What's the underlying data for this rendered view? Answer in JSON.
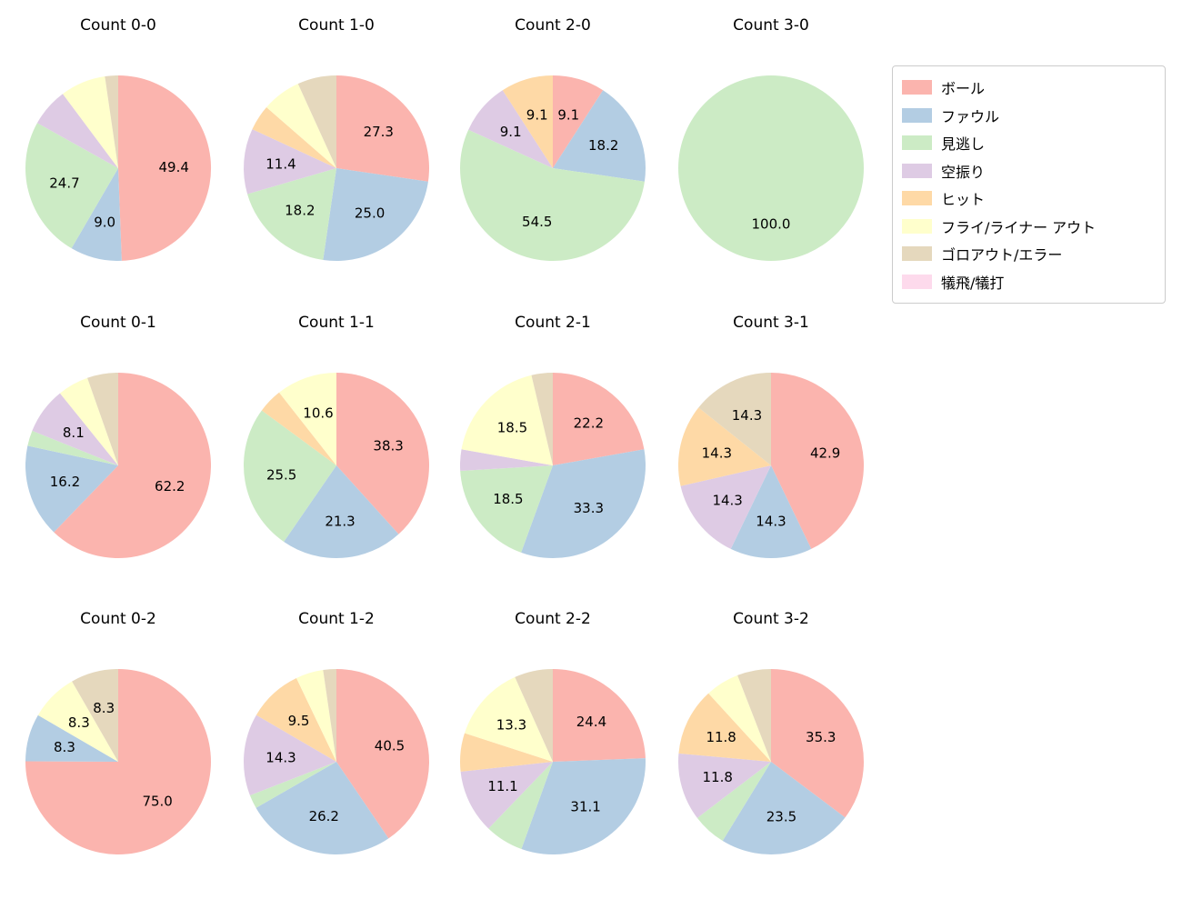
{
  "figure": {
    "background": "#ffffff",
    "text_color": "#000000"
  },
  "legend": {
    "position": "top-right",
    "border_color": "#cccccc",
    "items": [
      {
        "key": "ball",
        "label": "ボール",
        "color": "#fbb4ae"
      },
      {
        "key": "foul",
        "label": "ファウル",
        "color": "#b3cde3"
      },
      {
        "key": "called-strike",
        "label": "見逃し",
        "color": "#ccebc5"
      },
      {
        "key": "swinging-strike",
        "label": "空振り",
        "color": "#decbe4"
      },
      {
        "key": "hit",
        "label": "ヒット",
        "color": "#fed9a6"
      },
      {
        "key": "fly-liner-out",
        "label": "フライ/ライナー アウト",
        "color": "#ffffcc"
      },
      {
        "key": "groundout-error",
        "label": "ゴロアウト/エラー",
        "color": "#e5d8bd"
      },
      {
        "key": "sacrifice",
        "label": "犠飛/犠打",
        "color": "#fddaec"
      }
    ]
  },
  "chart_data": {
    "type": "pie",
    "grid": {
      "rows": 3,
      "cols": 4
    },
    "start_angle": "12 o'clock",
    "direction": "clockwise",
    "label_rule": "percent labels shown only for slices >= ~8%",
    "charts": [
      {
        "title": "Count 0-0",
        "slices": [
          {
            "category": "ball",
            "value": 49.4,
            "label": "49.4"
          },
          {
            "category": "foul",
            "value": 9.0,
            "label": "9.0"
          },
          {
            "category": "called-strike",
            "value": 24.7,
            "label": "24.7"
          },
          {
            "category": "swinging-strike",
            "value": 6.7,
            "label": ""
          },
          {
            "category": "fly-liner-out",
            "value": 7.9,
            "label": ""
          },
          {
            "category": "groundout-error",
            "value": 2.3,
            "label": ""
          }
        ]
      },
      {
        "title": "Count 1-0",
        "slices": [
          {
            "category": "ball",
            "value": 27.3,
            "label": "27.3"
          },
          {
            "category": "foul",
            "value": 25.0,
            "label": "25.0"
          },
          {
            "category": "called-strike",
            "value": 18.2,
            "label": "18.2"
          },
          {
            "category": "swinging-strike",
            "value": 11.4,
            "label": "11.4"
          },
          {
            "category": "hit",
            "value": 4.5,
            "label": ""
          },
          {
            "category": "fly-liner-out",
            "value": 6.8,
            "label": ""
          },
          {
            "category": "groundout-error",
            "value": 6.8,
            "label": ""
          }
        ]
      },
      {
        "title": "Count 2-0",
        "slices": [
          {
            "category": "ball",
            "value": 9.1,
            "label": "9.1"
          },
          {
            "category": "foul",
            "value": 18.2,
            "label": "18.2"
          },
          {
            "category": "called-strike",
            "value": 54.5,
            "label": "54.5"
          },
          {
            "category": "swinging-strike",
            "value": 9.1,
            "label": "9.1"
          },
          {
            "category": "hit",
            "value": 9.1,
            "label": "9.1"
          }
        ]
      },
      {
        "title": "Count 3-0",
        "slices": [
          {
            "category": "called-strike",
            "value": 100.0,
            "label": "100.0"
          }
        ]
      },
      {
        "title": "Count 0-1",
        "slices": [
          {
            "category": "ball",
            "value": 62.2,
            "label": "62.2"
          },
          {
            "category": "foul",
            "value": 16.2,
            "label": "16.2"
          },
          {
            "category": "called-strike",
            "value": 2.7,
            "label": ""
          },
          {
            "category": "swinging-strike",
            "value": 8.1,
            "label": "8.1"
          },
          {
            "category": "fly-liner-out",
            "value": 5.4,
            "label": ""
          },
          {
            "category": "groundout-error",
            "value": 5.4,
            "label": ""
          }
        ]
      },
      {
        "title": "Count 1-1",
        "slices": [
          {
            "category": "ball",
            "value": 38.3,
            "label": "38.3"
          },
          {
            "category": "foul",
            "value": 21.3,
            "label": "21.3"
          },
          {
            "category": "called-strike",
            "value": 25.5,
            "label": "25.5"
          },
          {
            "category": "hit",
            "value": 4.3,
            "label": ""
          },
          {
            "category": "fly-liner-out",
            "value": 10.6,
            "label": "10.6"
          }
        ]
      },
      {
        "title": "Count 2-1",
        "slices": [
          {
            "category": "ball",
            "value": 22.2,
            "label": "22.2"
          },
          {
            "category": "foul",
            "value": 33.3,
            "label": "33.3"
          },
          {
            "category": "called-strike",
            "value": 18.5,
            "label": "18.5"
          },
          {
            "category": "swinging-strike",
            "value": 3.7,
            "label": ""
          },
          {
            "category": "fly-liner-out",
            "value": 18.5,
            "label": "18.5"
          },
          {
            "category": "groundout-error",
            "value": 3.7,
            "label": ""
          }
        ]
      },
      {
        "title": "Count 3-1",
        "slices": [
          {
            "category": "ball",
            "value": 42.9,
            "label": "42.9"
          },
          {
            "category": "foul",
            "value": 14.3,
            "label": "14.3"
          },
          {
            "category": "swinging-strike",
            "value": 14.3,
            "label": "14.3"
          },
          {
            "category": "hit",
            "value": 14.3,
            "label": "14.3"
          },
          {
            "category": "groundout-error",
            "value": 14.3,
            "label": "14.3"
          }
        ]
      },
      {
        "title": "Count 0-2",
        "slices": [
          {
            "category": "ball",
            "value": 75.0,
            "label": "75.0"
          },
          {
            "category": "foul",
            "value": 8.3,
            "label": "8.3"
          },
          {
            "category": "fly-liner-out",
            "value": 8.3,
            "label": "8.3"
          },
          {
            "category": "groundout-error",
            "value": 8.3,
            "label": "8.3"
          }
        ]
      },
      {
        "title": "Count 1-2",
        "slices": [
          {
            "category": "ball",
            "value": 40.5,
            "label": "40.5"
          },
          {
            "category": "foul",
            "value": 26.2,
            "label": "26.2"
          },
          {
            "category": "called-strike",
            "value": 2.4,
            "label": ""
          },
          {
            "category": "swinging-strike",
            "value": 14.3,
            "label": "14.3"
          },
          {
            "category": "hit",
            "value": 9.5,
            "label": "9.5"
          },
          {
            "category": "fly-liner-out",
            "value": 4.8,
            "label": ""
          },
          {
            "category": "groundout-error",
            "value": 2.3,
            "label": ""
          }
        ]
      },
      {
        "title": "Count 2-2",
        "slices": [
          {
            "category": "ball",
            "value": 24.4,
            "label": "24.4"
          },
          {
            "category": "foul",
            "value": 31.1,
            "label": "31.1"
          },
          {
            "category": "called-strike",
            "value": 6.7,
            "label": ""
          },
          {
            "category": "swinging-strike",
            "value": 11.1,
            "label": "11.1"
          },
          {
            "category": "hit",
            "value": 6.7,
            "label": ""
          },
          {
            "category": "fly-liner-out",
            "value": 13.3,
            "label": "13.3"
          },
          {
            "category": "groundout-error",
            "value": 6.7,
            "label": ""
          }
        ]
      },
      {
        "title": "Count 3-2",
        "slices": [
          {
            "category": "ball",
            "value": 35.3,
            "label": "35.3"
          },
          {
            "category": "foul",
            "value": 23.5,
            "label": "23.5"
          },
          {
            "category": "called-strike",
            "value": 5.9,
            "label": ""
          },
          {
            "category": "swinging-strike",
            "value": 11.8,
            "label": "11.8"
          },
          {
            "category": "hit",
            "value": 11.8,
            "label": "11.8"
          },
          {
            "category": "fly-liner-out",
            "value": 5.9,
            "label": ""
          },
          {
            "category": "groundout-error",
            "value": 5.9,
            "label": ""
          }
        ]
      }
    ]
  }
}
